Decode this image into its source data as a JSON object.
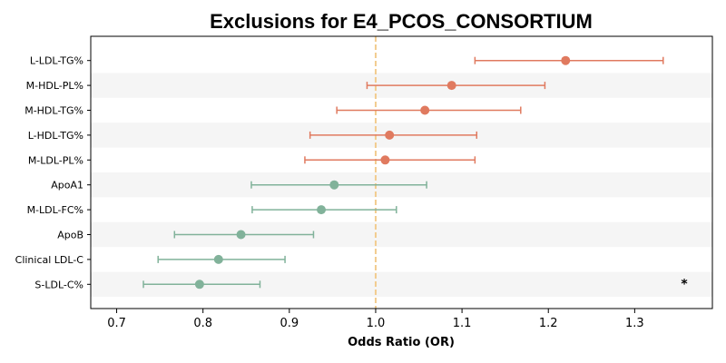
{
  "chart_data": {
    "type": "forest",
    "title": "Exclusions for E4_PCOS_CONSORTIUM",
    "xlabel": "Odds Ratio (OR)",
    "ylabel": "",
    "xlim": [
      0.67,
      1.39
    ],
    "xticks": [
      "0.7",
      "0.8",
      "0.9",
      "1.0",
      "1.1",
      "1.2",
      "1.3"
    ],
    "reference_line": 1.0,
    "colors": {
      "positive": "#e07a5f",
      "negative": "#81b29a",
      "reference": "#f2cc8f",
      "band": "#f5f5f5"
    },
    "rows": [
      {
        "label": "L-LDL-TG%",
        "or": 1.22,
        "lower": 1.115,
        "upper": 1.333,
        "direction": "positive",
        "sig": ""
      },
      {
        "label": "M-HDL-PL%",
        "or": 1.088,
        "lower": 0.99,
        "upper": 1.196,
        "direction": "positive",
        "sig": ""
      },
      {
        "label": "M-HDL-TG%",
        "or": 1.057,
        "lower": 0.955,
        "upper": 1.168,
        "direction": "positive",
        "sig": ""
      },
      {
        "label": "L-HDL-TG%",
        "or": 1.016,
        "lower": 0.924,
        "upper": 1.117,
        "direction": "positive",
        "sig": ""
      },
      {
        "label": "M-LDL-PL%",
        "or": 1.011,
        "lower": 0.918,
        "upper": 1.115,
        "direction": "positive",
        "sig": ""
      },
      {
        "label": "ApoA1",
        "or": 0.952,
        "lower": 0.856,
        "upper": 1.059,
        "direction": "negative",
        "sig": ""
      },
      {
        "label": "M-LDL-FC%",
        "or": 0.937,
        "lower": 0.857,
        "upper": 1.024,
        "direction": "negative",
        "sig": ""
      },
      {
        "label": "ApoB",
        "or": 0.844,
        "lower": 0.767,
        "upper": 0.928,
        "direction": "negative",
        "sig": ""
      },
      {
        "label": "Clinical LDL-C",
        "or": 0.818,
        "lower": 0.748,
        "upper": 0.895,
        "direction": "negative",
        "sig": ""
      },
      {
        "label": "S-LDL-C%",
        "or": 0.796,
        "lower": 0.731,
        "upper": 0.866,
        "direction": "negative",
        "sig": "*"
      }
    ]
  }
}
